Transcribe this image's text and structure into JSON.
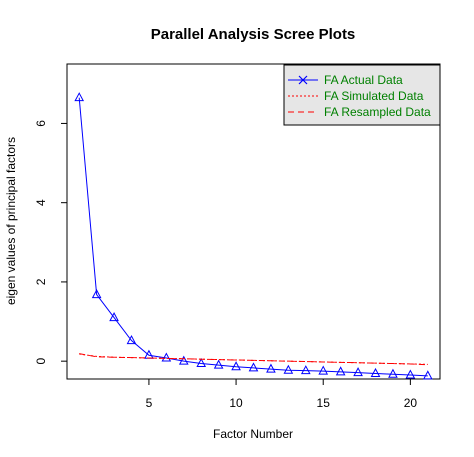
{
  "chart_data": {
    "type": "line",
    "title": "Parallel Analysis Scree Plots",
    "xlabel": "Factor Number",
    "ylabel": "eigen values of principal factors",
    "xlim": [
      0.3,
      21.7
    ],
    "ylim": [
      -0.45,
      7.5
    ],
    "xticks": [
      5,
      10,
      15,
      20
    ],
    "yticks": [
      0,
      2,
      4,
      6
    ],
    "grid": false,
    "legend_position": "top-right",
    "x": [
      1,
      2,
      3,
      4,
      5,
      6,
      7,
      8,
      9,
      10,
      11,
      12,
      13,
      14,
      15,
      16,
      17,
      18,
      19,
      20,
      21
    ],
    "series": [
      {
        "name": "FA  Actual Data",
        "color": "#0000ff",
        "line_style": "solid",
        "marker": "triangle-open",
        "legend_symbol": "x",
        "values": [
          6.65,
          1.68,
          1.1,
          0.52,
          0.15,
          0.08,
          0.0,
          -0.06,
          -0.1,
          -0.14,
          -0.17,
          -0.2,
          -0.23,
          -0.24,
          -0.25,
          -0.27,
          -0.29,
          -0.31,
          -0.33,
          -0.35,
          -0.37
        ]
      },
      {
        "name": "FA  Simulated Data",
        "color": "#ff0000",
        "line_style": "dotted",
        "marker": "none",
        "values": [
          0.18,
          0.12,
          0.1,
          0.09,
          0.08,
          0.07,
          0.06,
          0.05,
          0.04,
          0.03,
          0.02,
          0.01,
          0.0,
          -0.01,
          -0.02,
          -0.03,
          -0.04,
          -0.05,
          -0.06,
          -0.07,
          -0.08
        ]
      },
      {
        "name": "FA  Resampled Data",
        "color": "#ff0000",
        "line_style": "dashed",
        "marker": "none",
        "values": [
          0.19,
          0.11,
          0.1,
          0.09,
          0.08,
          0.07,
          0.06,
          0.05,
          0.04,
          0.03,
          0.02,
          0.01,
          0.0,
          -0.01,
          -0.02,
          -0.03,
          -0.04,
          -0.05,
          -0.06,
          -0.07,
          -0.09
        ]
      }
    ],
    "legend_text_color": "#008000",
    "legend_background": "#e6e6e6"
  }
}
